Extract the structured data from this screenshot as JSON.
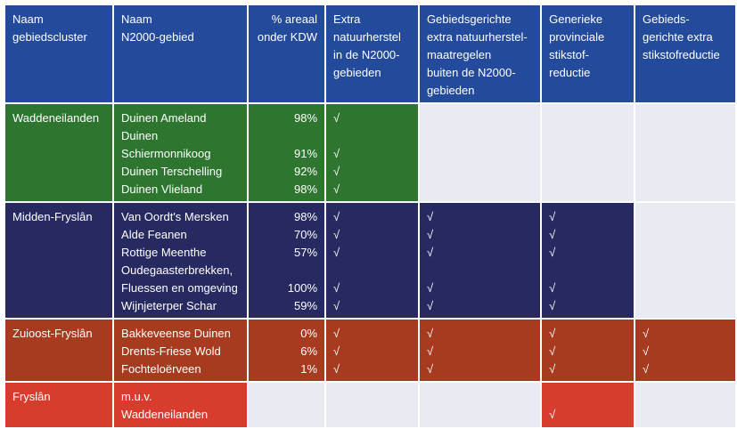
{
  "headers": [
    "Naam\ngebiedscluster",
    "Naam\nN2000-gebied",
    "% areaal\nonder KDW",
    "Extra\nnatuurherstel\nin de N2000-\ngebieden",
    "Gebiedsgerichte\nextra natuurherstel-\nmaatregelen\nbuiten de N2000-\ngebieden",
    "Generieke\nprovinciale\nstikstof-\nreductie",
    "Gebieds-\ngerichte extra\nstikstofreductie"
  ],
  "colors": {
    "header": "#234a9b",
    "waddeneilanden": "#2e7630",
    "midden_fryslan": "#262a60",
    "zuioost_fryslan": "#a73a1f",
    "fryslan": "#d83c2d",
    "empty": "#e8ebf2"
  },
  "check_symbol": "√",
  "rows": [
    {
      "cluster": "Waddeneilanden",
      "areas": [
        "Duinen Ameland",
        "Duinen",
        "Schiermonnikoog",
        "Duinen Terschelling",
        "Duinen Vlieland"
      ],
      "pct": [
        "98%",
        "",
        "91%",
        "92%",
        "98%"
      ],
      "extra_natuurherstel": [
        "√",
        "",
        "√",
        "√",
        "√"
      ],
      "gebiedsgerichte_natuurherstel": [],
      "generieke_reductie": [],
      "gebiedsgerichte_reductie": []
    },
    {
      "cluster": "Midden-Fryslân",
      "areas": [
        "Van Oordt's Mersken",
        "Alde Feanen",
        "Rottige Meenthe",
        "Oudegaasterbrekken,",
        "Fluessen en omgeving",
        "Wijnjeterper Schar"
      ],
      "pct": [
        "98%",
        "70%",
        "57%",
        "",
        "100%",
        "59%"
      ],
      "extra_natuurherstel": [
        "√",
        "√",
        "√",
        "",
        "√",
        "√"
      ],
      "gebiedsgerichte_natuurherstel": [
        "√",
        "√",
        "√",
        "",
        "√",
        "√"
      ],
      "generieke_reductie": [
        "√",
        "√",
        "√",
        "",
        "√",
        "√"
      ],
      "gebiedsgerichte_reductie": []
    },
    {
      "cluster": "Zuioost-Fryslân",
      "areas": [
        "Bakkeveense Duinen",
        "Drents-Friese Wold",
        "Fochteloërveen"
      ],
      "pct": [
        "0%",
        "6%",
        "1%"
      ],
      "extra_natuurherstel": [
        "√",
        "√",
        "√"
      ],
      "gebiedsgerichte_natuurherstel": [
        "√",
        "√",
        "√"
      ],
      "generieke_reductie": [
        "√",
        "√",
        "√"
      ],
      "gebiedsgerichte_reductie": [
        "√",
        "√",
        "√"
      ]
    },
    {
      "cluster": "Fryslân",
      "areas": [
        "m.u.v.",
        "Waddeneilanden"
      ],
      "pct": [],
      "extra_natuurherstel": [],
      "gebiedsgerichte_natuurherstel": [],
      "generieke_reductie": [
        "",
        "√"
      ],
      "gebiedsgerichte_reductie": []
    }
  ]
}
